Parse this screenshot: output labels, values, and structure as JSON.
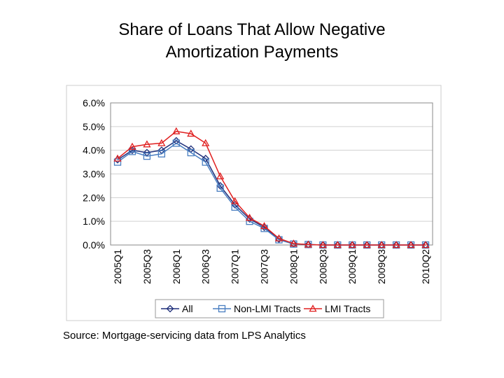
{
  "chart_data": {
    "type": "line",
    "title": "Share of Loans That Allow Negative Amortization Payments",
    "title_lines": [
      "Share of Loans That Allow Negative",
      "Amortization Payments"
    ],
    "source": "Source: Mortgage-servicing data from LPS Analytics",
    "categories": [
      "2005Q1",
      null,
      "2005Q3",
      null,
      "2006Q1",
      null,
      "2006Q3",
      null,
      "2007Q1",
      null,
      "2007Q3",
      null,
      "2008Q1",
      null,
      "2008Q3",
      null,
      "2009Q1",
      null,
      "2009Q3",
      null,
      null,
      "2010Q2"
    ],
    "series": [
      {
        "name": "All",
        "color": "#1f2f7a",
        "marker": "diamond",
        "values": [
          3.6,
          4.0,
          3.9,
          4.0,
          4.4,
          4.05,
          3.65,
          2.5,
          1.7,
          1.1,
          0.75,
          0.25,
          0.05,
          0.02,
          0,
          0,
          0,
          0,
          0,
          0,
          0,
          0
        ]
      },
      {
        "name": "Non-LMI Tracts",
        "color": "#4a7fc1",
        "marker": "square",
        "values": [
          3.5,
          3.95,
          3.75,
          3.85,
          4.3,
          3.9,
          3.5,
          2.4,
          1.6,
          1.0,
          0.7,
          0.22,
          0.04,
          0.02,
          0,
          0,
          0,
          0,
          0,
          0,
          0,
          0
        ]
      },
      {
        "name": "LMI Tracts",
        "color": "#e02020",
        "marker": "triangle",
        "values": [
          3.65,
          4.15,
          4.25,
          4.3,
          4.8,
          4.7,
          4.3,
          2.9,
          1.85,
          1.15,
          0.8,
          0.28,
          0.06,
          0.02,
          0,
          0,
          0,
          0,
          0,
          0,
          0,
          0
        ]
      }
    ],
    "ylim": [
      0,
      6
    ],
    "yticks": [
      {
        "value": 0,
        "label": "0.0%"
      },
      {
        "value": 1,
        "label": "1.0%"
      },
      {
        "value": 2,
        "label": "2.0%"
      },
      {
        "value": 3,
        "label": "3.0%"
      },
      {
        "value": 4,
        "label": "4.0%"
      },
      {
        "value": 5,
        "label": "5.0%"
      },
      {
        "value": 6,
        "label": "6.0%"
      }
    ],
    "grid": true,
    "legend": "bottom"
  }
}
